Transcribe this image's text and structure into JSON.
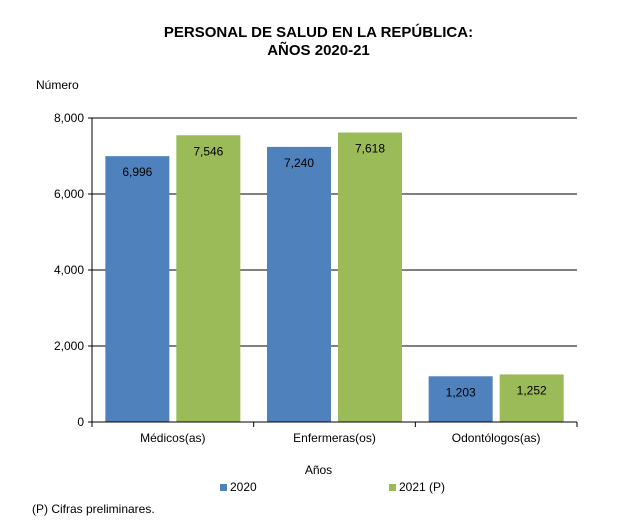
{
  "colors": {
    "series_2020": "#4f81bd",
    "series_2021": "#9bbb59",
    "grid": "#000000"
  },
  "footnote": "(P) Cifras  preliminares.",
  "chart_data": {
    "type": "bar",
    "title_line1": "PERSONAL DE SALUD EN LA REPÚBLICA:",
    "title_line2": "AÑOS 2020-21",
    "ylabel": "Número",
    "xlabel": "Años",
    "categories": [
      "Médicos(as)",
      "Enfermeras(os)",
      "Odontólogos(as)"
    ],
    "series": [
      {
        "name": "2020",
        "values": [
          6996,
          7240,
          1203
        ],
        "labels": [
          "6,996",
          "7,240",
          "1,203"
        ]
      },
      {
        "name": "2021 (P)",
        "values": [
          7546,
          7618,
          1252
        ],
        "labels": [
          "7,546",
          "7,618",
          "1,252"
        ]
      }
    ],
    "ylim": [
      0,
      8000
    ],
    "yticks": [
      0,
      2000,
      4000,
      6000,
      8000
    ],
    "ytick_labels": [
      "0",
      "2,000",
      "4,000",
      "6,000",
      "8,000"
    ],
    "grid": true,
    "legend_position": "bottom"
  }
}
